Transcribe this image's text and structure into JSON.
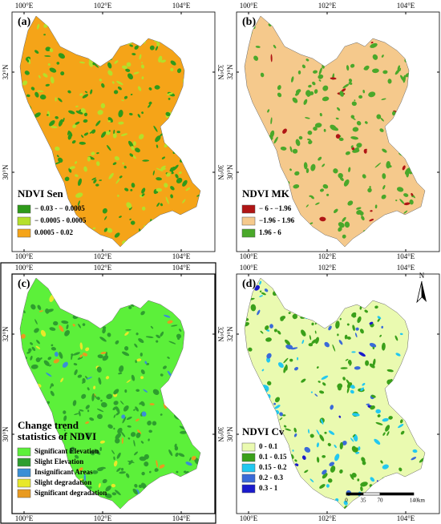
{
  "panels": [
    {
      "label": "(a)",
      "top_ticks": [
        "100°E",
        "102°E",
        "104°E"
      ],
      "bottom_ticks": [
        "100°E",
        "102°E",
        "104°E"
      ],
      "left_ticks": [
        "32°N",
        "30°N"
      ],
      "right_ticks": [
        "32°N",
        "30°N"
      ],
      "legend": {
        "title": [
          "NDVI Sen"
        ],
        "items": [
          {
            "label": "− 0.03 - − 0.0005",
            "color": "#2e9a1a"
          },
          {
            "label": "− 0.0005 - 0.0005",
            "color": "#b5e02a"
          },
          {
            "label": "0.0005 - 0.02",
            "color": "#f5a418"
          }
        ]
      }
    },
    {
      "label": "(b)",
      "top_ticks": [
        "100°E",
        "102°E",
        "104°E"
      ],
      "bottom_ticks": [
        "100°E",
        "102°E",
        "104°E"
      ],
      "left_ticks": [
        "32°N",
        "30°N"
      ],
      "right_ticks": [
        "32°N",
        "30°N"
      ],
      "legend": {
        "title": [
          "NDVI MK"
        ],
        "items": [
          {
            "label": "− 6 - −1.96",
            "color": "#b01515"
          },
          {
            "label": "−1.96 - 1.96",
            "color": "#f5c98c"
          },
          {
            "label": "1.96 - 6",
            "color": "#4aa82a"
          }
        ]
      }
    },
    {
      "label": "(c)",
      "top_ticks": [
        "100°E",
        "102°E",
        "104°E"
      ],
      "bottom_ticks": [
        "100°E",
        "102°E",
        "104°E"
      ],
      "left_ticks": [
        "32°N",
        "30°N"
      ],
      "right_ticks": [
        "32°N",
        "30°N"
      ],
      "legend": {
        "title": [
          "Change trend",
          "statistics of NDVI"
        ],
        "items": [
          {
            "label": "Significant Elevation",
            "color": "#5cf03a"
          },
          {
            "label": "Slight Elevation",
            "color": "#2e9e2e"
          },
          {
            "label": "Insignificant Areas",
            "color": "#3a8fd6"
          },
          {
            "label": "Slight degradation",
            "color": "#e8e82a"
          },
          {
            "label": "Significant degradation",
            "color": "#e89a20"
          }
        ]
      }
    },
    {
      "label": "(d)",
      "top_ticks": [
        "100°E",
        "102°E",
        "104°E"
      ],
      "bottom_ticks": [
        "100°E",
        "102°E",
        "104°E"
      ],
      "left_ticks": [
        "32°N",
        "30°N"
      ],
      "right_ticks": [
        "32°N",
        "30°N"
      ],
      "legend": {
        "title": [
          "NDVI Cv"
        ],
        "items": [
          {
            "label": "0 - 0.1",
            "color": "#eafab0"
          },
          {
            "label": "0.1 - 0.15",
            "color": "#3aa01a"
          },
          {
            "label": "0.15 - 0.2",
            "color": "#22c8f0"
          },
          {
            "label": "0.2 - 0.3",
            "color": "#3a6ad8"
          },
          {
            "label": "0.3 - 1",
            "color": "#1a1acc"
          }
        ]
      }
    }
  ],
  "scale_bar": {
    "labels": [
      "0",
      "35",
      "70",
      "140"
    ],
    "unit": "km"
  },
  "north": "N"
}
